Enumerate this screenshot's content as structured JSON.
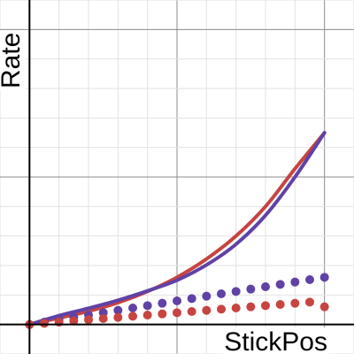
{
  "chart_data": {
    "type": "line",
    "xlabel": "StickPos",
    "ylabel": "Rate",
    "xlim": [
      -1,
      11
    ],
    "ylim": [
      -1,
      11
    ],
    "grid": true,
    "x_major_step": 5,
    "y_major_step": 5,
    "minor_step": 1,
    "series": [
      {
        "kind": "curve",
        "color": "#c74440",
        "x": [
          0,
          1,
          2,
          3,
          4,
          5,
          6,
          7,
          8,
          9,
          10
        ],
        "y": [
          0,
          0.22,
          0.45,
          0.74,
          1.12,
          1.6,
          2.22,
          3.0,
          4.0,
          5.28,
          6.5
        ]
      },
      {
        "kind": "curve",
        "color": "#6042a6",
        "x": [
          0,
          1,
          2,
          3,
          4,
          5,
          6,
          7,
          8,
          9,
          10
        ],
        "y": [
          0,
          0.3,
          0.55,
          0.82,
          1.14,
          1.5,
          2.02,
          2.72,
          3.7,
          5.0,
          6.5
        ]
      },
      {
        "kind": "points",
        "color": "#6042a6",
        "x": [
          0,
          0.5,
          1,
          1.5,
          2,
          2.5,
          3,
          3.5,
          4,
          4.5,
          5,
          5.5,
          6,
          6.5,
          7,
          7.5,
          8,
          8.5,
          9,
          9.5,
          10
        ],
        "y": [
          0,
          0.08,
          0.16,
          0.24,
          0.32,
          0.4,
          0.48,
          0.56,
          0.64,
          0.72,
          0.8,
          0.88,
          0.96,
          1.04,
          1.12,
          1.2,
          1.28,
          1.36,
          1.44,
          1.52,
          1.6
        ]
      },
      {
        "kind": "points",
        "color": "#c74440",
        "x": [
          0,
          0.5,
          1,
          1.5,
          2,
          2.5,
          3,
          3.5,
          4,
          4.5,
          5,
          5.5,
          6,
          6.5,
          7,
          7.5,
          8,
          8.5,
          9,
          9.5,
          10
        ],
        "y": [
          0,
          0.04,
          0.08,
          0.12,
          0.16,
          0.2,
          0.24,
          0.28,
          0.32,
          0.36,
          0.4,
          0.44,
          0.48,
          0.52,
          0.56,
          0.6,
          0.64,
          0.68,
          0.72,
          0.76,
          0.6
        ]
      }
    ]
  }
}
